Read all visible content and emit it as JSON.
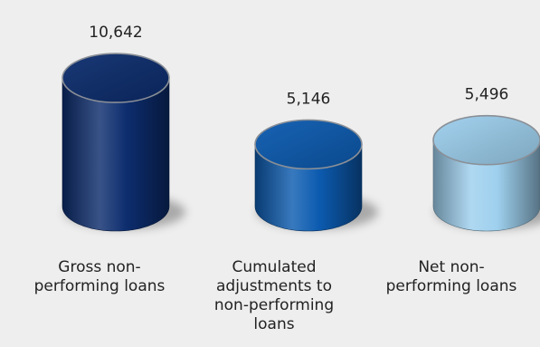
{
  "chart_data": {
    "type": "bar",
    "categories": [
      "Gross non-performing loans",
      "Cumulated adjustments to non-performing loans",
      "Net non-performing loans"
    ],
    "values": [
      10642,
      5146,
      5496
    ],
    "value_labels": [
      "10,642",
      "5,146",
      "5,496"
    ],
    "colors": [
      "#0d2d6e",
      "#0c5bb0",
      "#9ed0ee"
    ],
    "ylim": [
      0,
      12000
    ],
    "grid": false,
    "legend": "none"
  }
}
